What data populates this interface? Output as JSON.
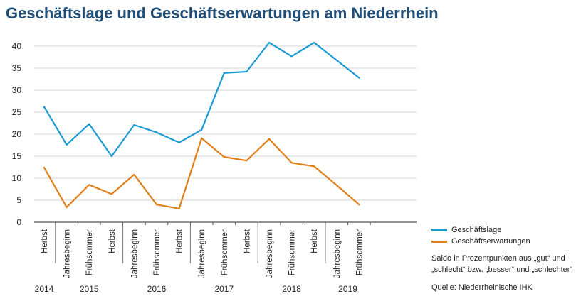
{
  "title": "Geschäftslage und Geschäftserwartungen am Niederrhein",
  "chart_data": {
    "type": "line",
    "title": "Geschäftslage und Geschäftserwartungen am Niederrhein",
    "categories": [
      "Herbst",
      "Jahresbeginn",
      "Frühsommer",
      "Herbst",
      "Jahresbeginn",
      "Frühsommer",
      "Herbst",
      "Jahresbeginn",
      "Frühsommer",
      "Herbst",
      "Jahresbeginn",
      "Frühsommer",
      "Herbst",
      "Jahresbeginn",
      "Frühsommer"
    ],
    "years": [
      {
        "label": "2014",
        "from": 0,
        "to": 0
      },
      {
        "label": "2015",
        "from": 1,
        "to": 3
      },
      {
        "label": "2016",
        "from": 4,
        "to": 6
      },
      {
        "label": "2017",
        "from": 7,
        "to": 9
      },
      {
        "label": "2018",
        "from": 10,
        "to": 12
      },
      {
        "label": "2019",
        "from": 13,
        "to": 14
      }
    ],
    "series": [
      {
        "name": "Geschäftslage",
        "color": "#1b9ad6",
        "values": [
          26.2,
          17.6,
          22.3,
          15.0,
          22.1,
          20.4,
          18.1,
          21.0,
          33.9,
          34.2,
          40.8,
          37.7,
          40.8,
          36.8,
          32.8
        ]
      },
      {
        "name": "Geschäftserwartungen",
        "color": "#e07f1a",
        "values": [
          12.4,
          3.4,
          8.5,
          6.4,
          10.8,
          4.0,
          3.1,
          19.1,
          14.8,
          14.0,
          18.9,
          13.5,
          12.7,
          8.4,
          4.0
        ]
      }
    ],
    "yticks": [
      0,
      5,
      10,
      15,
      20,
      25,
      30,
      35,
      40
    ],
    "ylim": [
      0,
      42
    ],
    "grid": true,
    "legend_position": "right"
  },
  "legend": {
    "items": [
      {
        "label": "Geschäftslage",
        "color": "#1b9ad6"
      },
      {
        "label": "Geschäftserwartungen",
        "color": "#e07f1a"
      }
    ]
  },
  "note": {
    "line1": "Saldo in Prozentpunkten aus „gut“ und",
    "line2": "„schlecht“ bzw. „besser“ und „schlechter“"
  },
  "source": "Quelle: Niederrheinische IHK"
}
